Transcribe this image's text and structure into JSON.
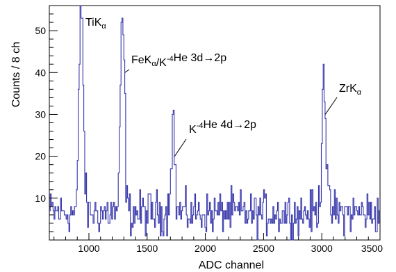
{
  "chart_data": {
    "type": "line",
    "style": "step-histogram",
    "title": "",
    "xlabel": "ADC channel",
    "ylabel": "Counts / 8 ch",
    "xlim": [
      660,
      3500
    ],
    "ylim": [
      0,
      56
    ],
    "bin_width": 8,
    "line_color": "#3333aa",
    "grid": false,
    "x_ticks": [
      1000,
      1500,
      2000,
      2500,
      3000,
      3500
    ],
    "x_tick_labels": [
      "1000",
      "1500",
      "2000",
      "2500",
      "3000",
      "3500"
    ],
    "y_ticks": [
      10,
      20,
      30,
      40,
      50
    ],
    "y_tick_labels": [
      "10",
      "20",
      "30",
      "40",
      "50"
    ],
    "baseline_counts": 6.5,
    "peaks": [
      {
        "center": 935,
        "height": 53,
        "sigma": 17
      },
      {
        "center": 1290,
        "height": 46,
        "sigma": 17
      },
      {
        "center": 1720,
        "height": 23,
        "sigma": 16
      },
      {
        "center": 3018,
        "height": 37,
        "sigma": 17
      }
    ],
    "annotations": [
      {
        "id": "tika",
        "parts": [
          {
            "t": "TiK"
          },
          {
            "t": "α",
            "sub": true
          }
        ],
        "x": 935,
        "y": 48
      },
      {
        "id": "feka",
        "parts": [
          {
            "t": "FeK"
          },
          {
            "t": "α",
            "sub": true
          },
          {
            "t": "/K"
          },
          {
            "t": "-4",
            "sup": true
          },
          {
            "t": "He 3d→2p"
          }
        ],
        "x": 1296,
        "y": 40
      },
      {
        "id": "k4d",
        "parts": [
          {
            "t": "K"
          },
          {
            "t": "-4",
            "sup": true
          },
          {
            "t": "He 4d→2p"
          }
        ],
        "x": 1724,
        "y": 20
      },
      {
        "id": "zrka",
        "parts": [
          {
            "t": "ZrK"
          },
          {
            "t": "α",
            "sub": true
          }
        ],
        "x": 3018,
        "y": 30
      }
    ]
  }
}
